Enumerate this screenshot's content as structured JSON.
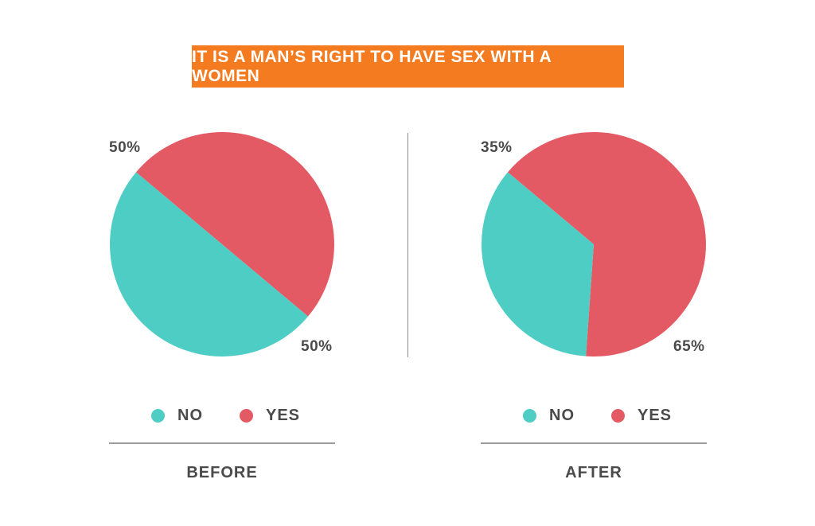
{
  "title": "IT IS A MAN’S RIGHT TO HAVE SEX WITH A WOMEN",
  "colors": {
    "banner": "#F47B20",
    "no": "#4ECDC4",
    "yes": "#E35A64"
  },
  "chart_data": [
    {
      "type": "pie",
      "caption": "BEFORE",
      "legend": [
        "NO",
        "YES"
      ],
      "slices": [
        {
          "label": "NO",
          "value": 50,
          "display": "50%"
        },
        {
          "label": "YES",
          "value": 50,
          "display": "50%"
        }
      ]
    },
    {
      "type": "pie",
      "caption": "AFTER",
      "legend": [
        "NO",
        "YES"
      ],
      "slices": [
        {
          "label": "NO",
          "value": 35,
          "display": "35%"
        },
        {
          "label": "YES",
          "value": 65,
          "display": "65%"
        }
      ]
    }
  ]
}
